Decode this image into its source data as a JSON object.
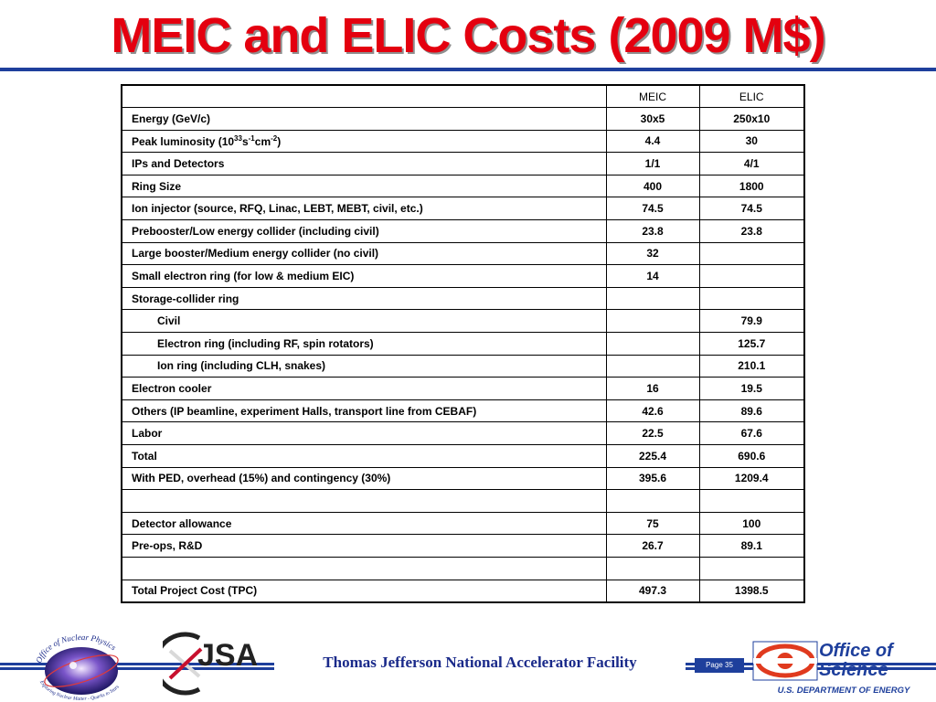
{
  "title": "MEIC and ELIC Costs (2009 M$)",
  "table": {
    "headers": [
      "",
      "MEIC",
      "ELIC"
    ],
    "rows": [
      {
        "label": "Energy      (GeV/c)",
        "meic": "30x5",
        "elic": "250x10",
        "indent": false
      },
      {
        "label": "Peak luminosity     (10",
        "meic": "4.4",
        "elic": "30",
        "indent": false,
        "lumi": true
      },
      {
        "label": "IPs and Detectors",
        "meic": "1/1",
        "elic": "4/1",
        "indent": false
      },
      {
        "label": "Ring Size",
        "meic": "400",
        "elic": "1800",
        "indent": false
      },
      {
        "label": "Ion injector (source, RFQ, Linac, LEBT, MEBT, civil, etc.)",
        "meic": "74.5",
        "elic": "74.5",
        "indent": false
      },
      {
        "label": "Prebooster/Low energy collider (including civil)",
        "meic": "23.8",
        "elic": "23.8",
        "indent": false
      },
      {
        "label": "Large booster/Medium energy collider (no civil)",
        "meic": "32",
        "elic": "",
        "indent": false
      },
      {
        "label": "Small electron ring (for low & medium EIC)",
        "meic": "14",
        "elic": "",
        "indent": false
      },
      {
        "label": "Storage-collider ring",
        "meic": "",
        "elic": "",
        "indent": false
      },
      {
        "label": "Civil",
        "meic": "",
        "elic": "79.9",
        "indent": true
      },
      {
        "label": "Electron ring (including RF, spin rotators)",
        "meic": "",
        "elic": "125.7",
        "indent": true
      },
      {
        "label": "Ion ring (including CLH, snakes)",
        "meic": "",
        "elic": "210.1",
        "indent": true
      },
      {
        "label": "Electron cooler",
        "meic": "16",
        "elic": "19.5",
        "indent": false
      },
      {
        "label": "Others (IP beamline, experiment Halls, transport line from CEBAF)",
        "meic": "42.6",
        "elic": "89.6",
        "indent": false
      },
      {
        "label": "Labor",
        "meic": "22.5",
        "elic": "67.6",
        "indent": false
      },
      {
        "label": "Total",
        "meic": "225.4",
        "elic": "690.6",
        "indent": false
      },
      {
        "label": "With PED, overhead (15%) and contingency (30%)",
        "meic": "395.6",
        "elic": "1209.4",
        "indent": false
      },
      {
        "label": "",
        "meic": "",
        "elic": "",
        "indent": false
      },
      {
        "label": "Detector allowance",
        "meic": "75",
        "elic": "100",
        "indent": false
      },
      {
        "label": "Pre-ops, R&D",
        "meic": "26.7",
        "elic": "89.1",
        "indent": false
      },
      {
        "label": "",
        "meic": "",
        "elic": "",
        "indent": false
      },
      {
        "label": "Total Project Cost (TPC)",
        "meic": "497.3",
        "elic": "1398.5",
        "indent": false
      }
    ],
    "lumi_parts": {
      "exp1": "33",
      "s": "s",
      "exp2": "-1",
      "cm": "cm",
      "exp3": "-2",
      "close": ")"
    }
  },
  "footer": {
    "lab_name": "Thomas Jefferson National Accelerator Facility",
    "page": "Page 35",
    "np_logo_text": "Office of Nuclear Physics",
    "np_logo_tagline": "Exploring Nuclear Matter - Quarks to Stars",
    "jsa_logo_text": "JSA",
    "doe_title_line1": "Office of",
    "doe_title_line2": "Science",
    "doe_sub": "U.S. DEPARTMENT OF ENERGY"
  },
  "colors": {
    "title_red": "#e4000f",
    "accent_blue": "#1e3f9c"
  }
}
